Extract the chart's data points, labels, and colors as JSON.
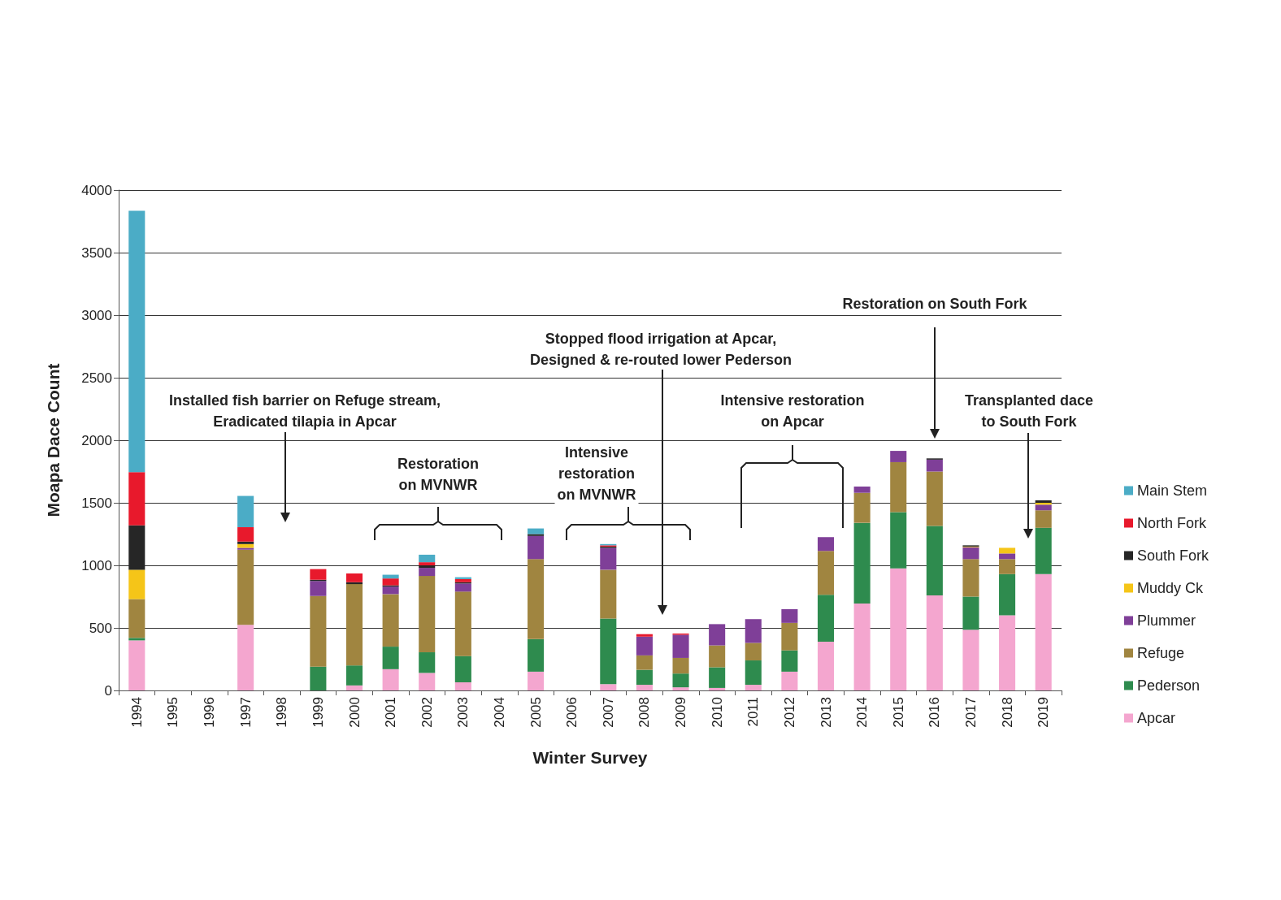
{
  "chart_data": {
    "type": "bar",
    "stacked": true,
    "xlabel": "Winter Survey",
    "ylabel": "Moapa Dace Count",
    "categories": [
      "1994",
      "1995",
      "1996",
      "1997",
      "1998",
      "1999",
      "2000",
      "2001",
      "2002",
      "2003",
      "2004",
      "2005",
      "2006",
      "2007",
      "2008",
      "2009",
      "2010",
      "2011",
      "2012",
      "2013",
      "2014",
      "2015",
      "2016",
      "2017",
      "2018",
      "2019"
    ],
    "series": [
      {
        "name": "Apcar",
        "color": "#f4a6cf",
        "values": [
          400,
          0,
          0,
          525,
          0,
          0,
          40,
          170,
          140,
          65,
          0,
          150,
          0,
          50,
          45,
          25,
          20,
          45,
          150,
          390,
          695,
          975,
          760,
          485,
          600,
          930
        ]
      },
      {
        "name": "Pederson",
        "color": "#2e8b4e",
        "values": [
          20,
          0,
          0,
          0,
          0,
          190,
          160,
          180,
          165,
          210,
          0,
          260,
          0,
          525,
          120,
          110,
          165,
          195,
          170,
          375,
          645,
          450,
          555,
          265,
          330,
          370
        ]
      },
      {
        "name": "Refuge",
        "color": "#a08540",
        "values": [
          310,
          0,
          0,
          600,
          0,
          565,
          650,
          420,
          610,
          515,
          0,
          640,
          0,
          390,
          115,
          125,
          175,
          140,
          220,
          350,
          240,
          400,
          435,
          300,
          120,
          140
        ]
      },
      {
        "name": "Plummer",
        "color": "#7f3f98",
        "values": [
          0,
          0,
          0,
          15,
          0,
          120,
          0,
          60,
          65,
          65,
          0,
          185,
          0,
          175,
          150,
          185,
          170,
          190,
          110,
          110,
          50,
          90,
          95,
          95,
          45,
          45
        ]
      },
      {
        "name": "Muddy Ck",
        "color": "#f5c518",
        "values": [
          235,
          0,
          0,
          30,
          0,
          0,
          0,
          0,
          0,
          0,
          0,
          0,
          0,
          0,
          0,
          0,
          0,
          0,
          0,
          0,
          0,
          0,
          0,
          5,
          45,
          15
        ]
      },
      {
        "name": "South Fork",
        "color": "#262626",
        "values": [
          355,
          0,
          0,
          20,
          0,
          10,
          15,
          10,
          20,
          10,
          0,
          15,
          0,
          10,
          0,
          0,
          0,
          0,
          0,
          0,
          0,
          0,
          10,
          10,
          0,
          20
        ]
      },
      {
        "name": "North Fork",
        "color": "#e8192c",
        "values": [
          425,
          0,
          0,
          115,
          0,
          85,
          70,
          55,
          25,
          25,
          0,
          0,
          0,
          10,
          20,
          10,
          0,
          0,
          0,
          0,
          0,
          0,
          0,
          0,
          0,
          0
        ]
      },
      {
        "name": "Main Stem",
        "color": "#4bacc6",
        "values": [
          2090,
          0,
          0,
          250,
          0,
          0,
          0,
          30,
          60,
          15,
          0,
          45,
          0,
          10,
          0,
          0,
          0,
          0,
          0,
          0,
          0,
          0,
          0,
          0,
          0,
          0
        ]
      }
    ],
    "ylim": [
      0,
      4000
    ],
    "yticks": [
      0,
      500,
      1000,
      1500,
      2000,
      2500,
      3000,
      3500,
      4000
    ],
    "grid": "y",
    "legend": "right",
    "annotations": [
      "Installed fish barrier on Refuge stream,\nEradicated tilapia in Apcar",
      "Restoration\non MVNWR",
      "Intensive\nrestoration\non MVNWR",
      "Stopped flood irrigation at Apcar,\nDesigned & re-routed lower Pederson",
      "Intensive restoration\non Apcar",
      "Restoration on South Fork",
      "Transplanted dace\nto South Fork"
    ]
  }
}
